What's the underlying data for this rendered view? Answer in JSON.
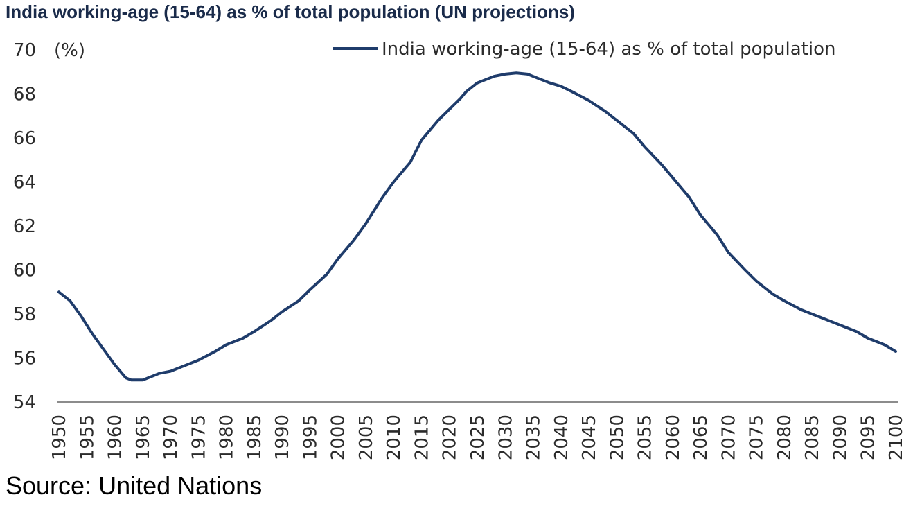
{
  "title": "India working-age (15-64) as % of total population (UN projections)",
  "source": "Source: United Nations",
  "colors": {
    "line": "#1f3c6b",
    "axis": "#8c8c8c",
    "text": "#2b2b2b"
  },
  "chart_data": {
    "type": "line",
    "title": "India working-age (15-64) as % of total population (UN projections)",
    "ylabel": "(%)",
    "xlabel": "",
    "ylim": [
      54,
      70
    ],
    "yticks": [
      54,
      56,
      58,
      60,
      62,
      64,
      66,
      68,
      70
    ],
    "xlim": [
      1950,
      2100
    ],
    "xticks": [
      1950,
      1955,
      1960,
      1965,
      1970,
      1975,
      1980,
      1985,
      1990,
      1995,
      2000,
      2005,
      2010,
      2015,
      2020,
      2025,
      2030,
      2035,
      2040,
      2045,
      2050,
      2055,
      2060,
      2065,
      2070,
      2075,
      2080,
      2085,
      2090,
      2095,
      2100
    ],
    "legend": "top-right",
    "grid": false,
    "series": [
      {
        "name": "India working-age (15-64) as % of total population",
        "x": [
          1950,
          1952,
          1954,
          1956,
          1958,
          1960,
          1962,
          1963,
          1964,
          1965,
          1966,
          1968,
          1970,
          1972,
          1975,
          1978,
          1980,
          1983,
          1985,
          1988,
          1990,
          1993,
          1995,
          1998,
          2000,
          2003,
          2005,
          2008,
          2010,
          2013,
          2015,
          2018,
          2020,
          2022,
          2023,
          2025,
          2028,
          2030,
          2032,
          2034,
          2036,
          2038,
          2040,
          2042,
          2045,
          2048,
          2050,
          2053,
          2055,
          2058,
          2060,
          2063,
          2065,
          2068,
          2070,
          2073,
          2075,
          2078,
          2080,
          2083,
          2085,
          2088,
          2090,
          2093,
          2095,
          2098,
          2100
        ],
        "y": [
          59.0,
          58.6,
          57.9,
          57.1,
          56.4,
          55.7,
          55.1,
          55.0,
          55.0,
          55.0,
          55.1,
          55.3,
          55.4,
          55.6,
          55.9,
          56.3,
          56.6,
          56.9,
          57.2,
          57.7,
          58.1,
          58.6,
          59.1,
          59.8,
          60.5,
          61.4,
          62.1,
          63.3,
          64.0,
          64.9,
          65.9,
          66.8,
          67.3,
          67.8,
          68.1,
          68.5,
          68.8,
          68.9,
          68.95,
          68.9,
          68.7,
          68.5,
          68.35,
          68.1,
          67.7,
          67.2,
          66.8,
          66.2,
          65.6,
          64.8,
          64.2,
          63.3,
          62.5,
          61.6,
          60.8,
          60.0,
          59.5,
          58.9,
          58.6,
          58.2,
          58.0,
          57.7,
          57.5,
          57.2,
          56.9,
          56.6,
          56.3
        ]
      }
    ]
  }
}
